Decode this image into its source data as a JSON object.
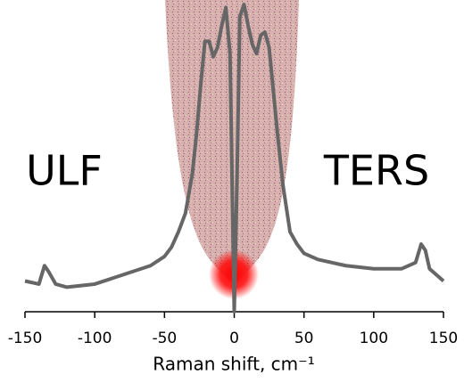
{
  "chart_data": {
    "type": "line",
    "xlabel": "Raman shift, cm⁻¹",
    "annotations": [
      "ULF",
      "TERS"
    ],
    "x": [
      -150,
      -140,
      -136,
      -133,
      -128,
      -120,
      -100,
      -80,
      -60,
      -50,
      -45,
      -40,
      -35,
      -30,
      -27,
      -24,
      -21,
      -18,
      -15,
      -12,
      -9,
      -6,
      -3,
      0,
      2,
      4,
      7,
      10,
      13,
      16,
      19,
      22,
      25,
      28,
      31,
      35,
      40,
      45,
      50,
      60,
      80,
      100,
      120,
      130,
      134,
      137,
      140,
      150
    ],
    "series": [
      {
        "color": "#666666",
        "values": [
          10,
          9,
          15,
          13,
          9,
          8,
          9,
          12,
          15,
          18,
          21,
          26,
          32,
          45,
          58,
          74,
          88,
          88,
          83,
          86,
          93,
          99,
          84,
          0,
          43,
          96,
          100,
          93,
          87,
          84,
          90,
          91,
          86,
          72,
          58,
          41,
          26,
          22,
          19,
          17,
          15,
          14,
          14,
          16,
          22,
          20,
          14,
          10
        ]
      }
    ],
    "xlim": [
      -150,
      150
    ],
    "xticks": [
      -150,
      -100,
      -50,
      0,
      50,
      100,
      150
    ],
    "ylim": [
      0,
      100
    ]
  }
}
